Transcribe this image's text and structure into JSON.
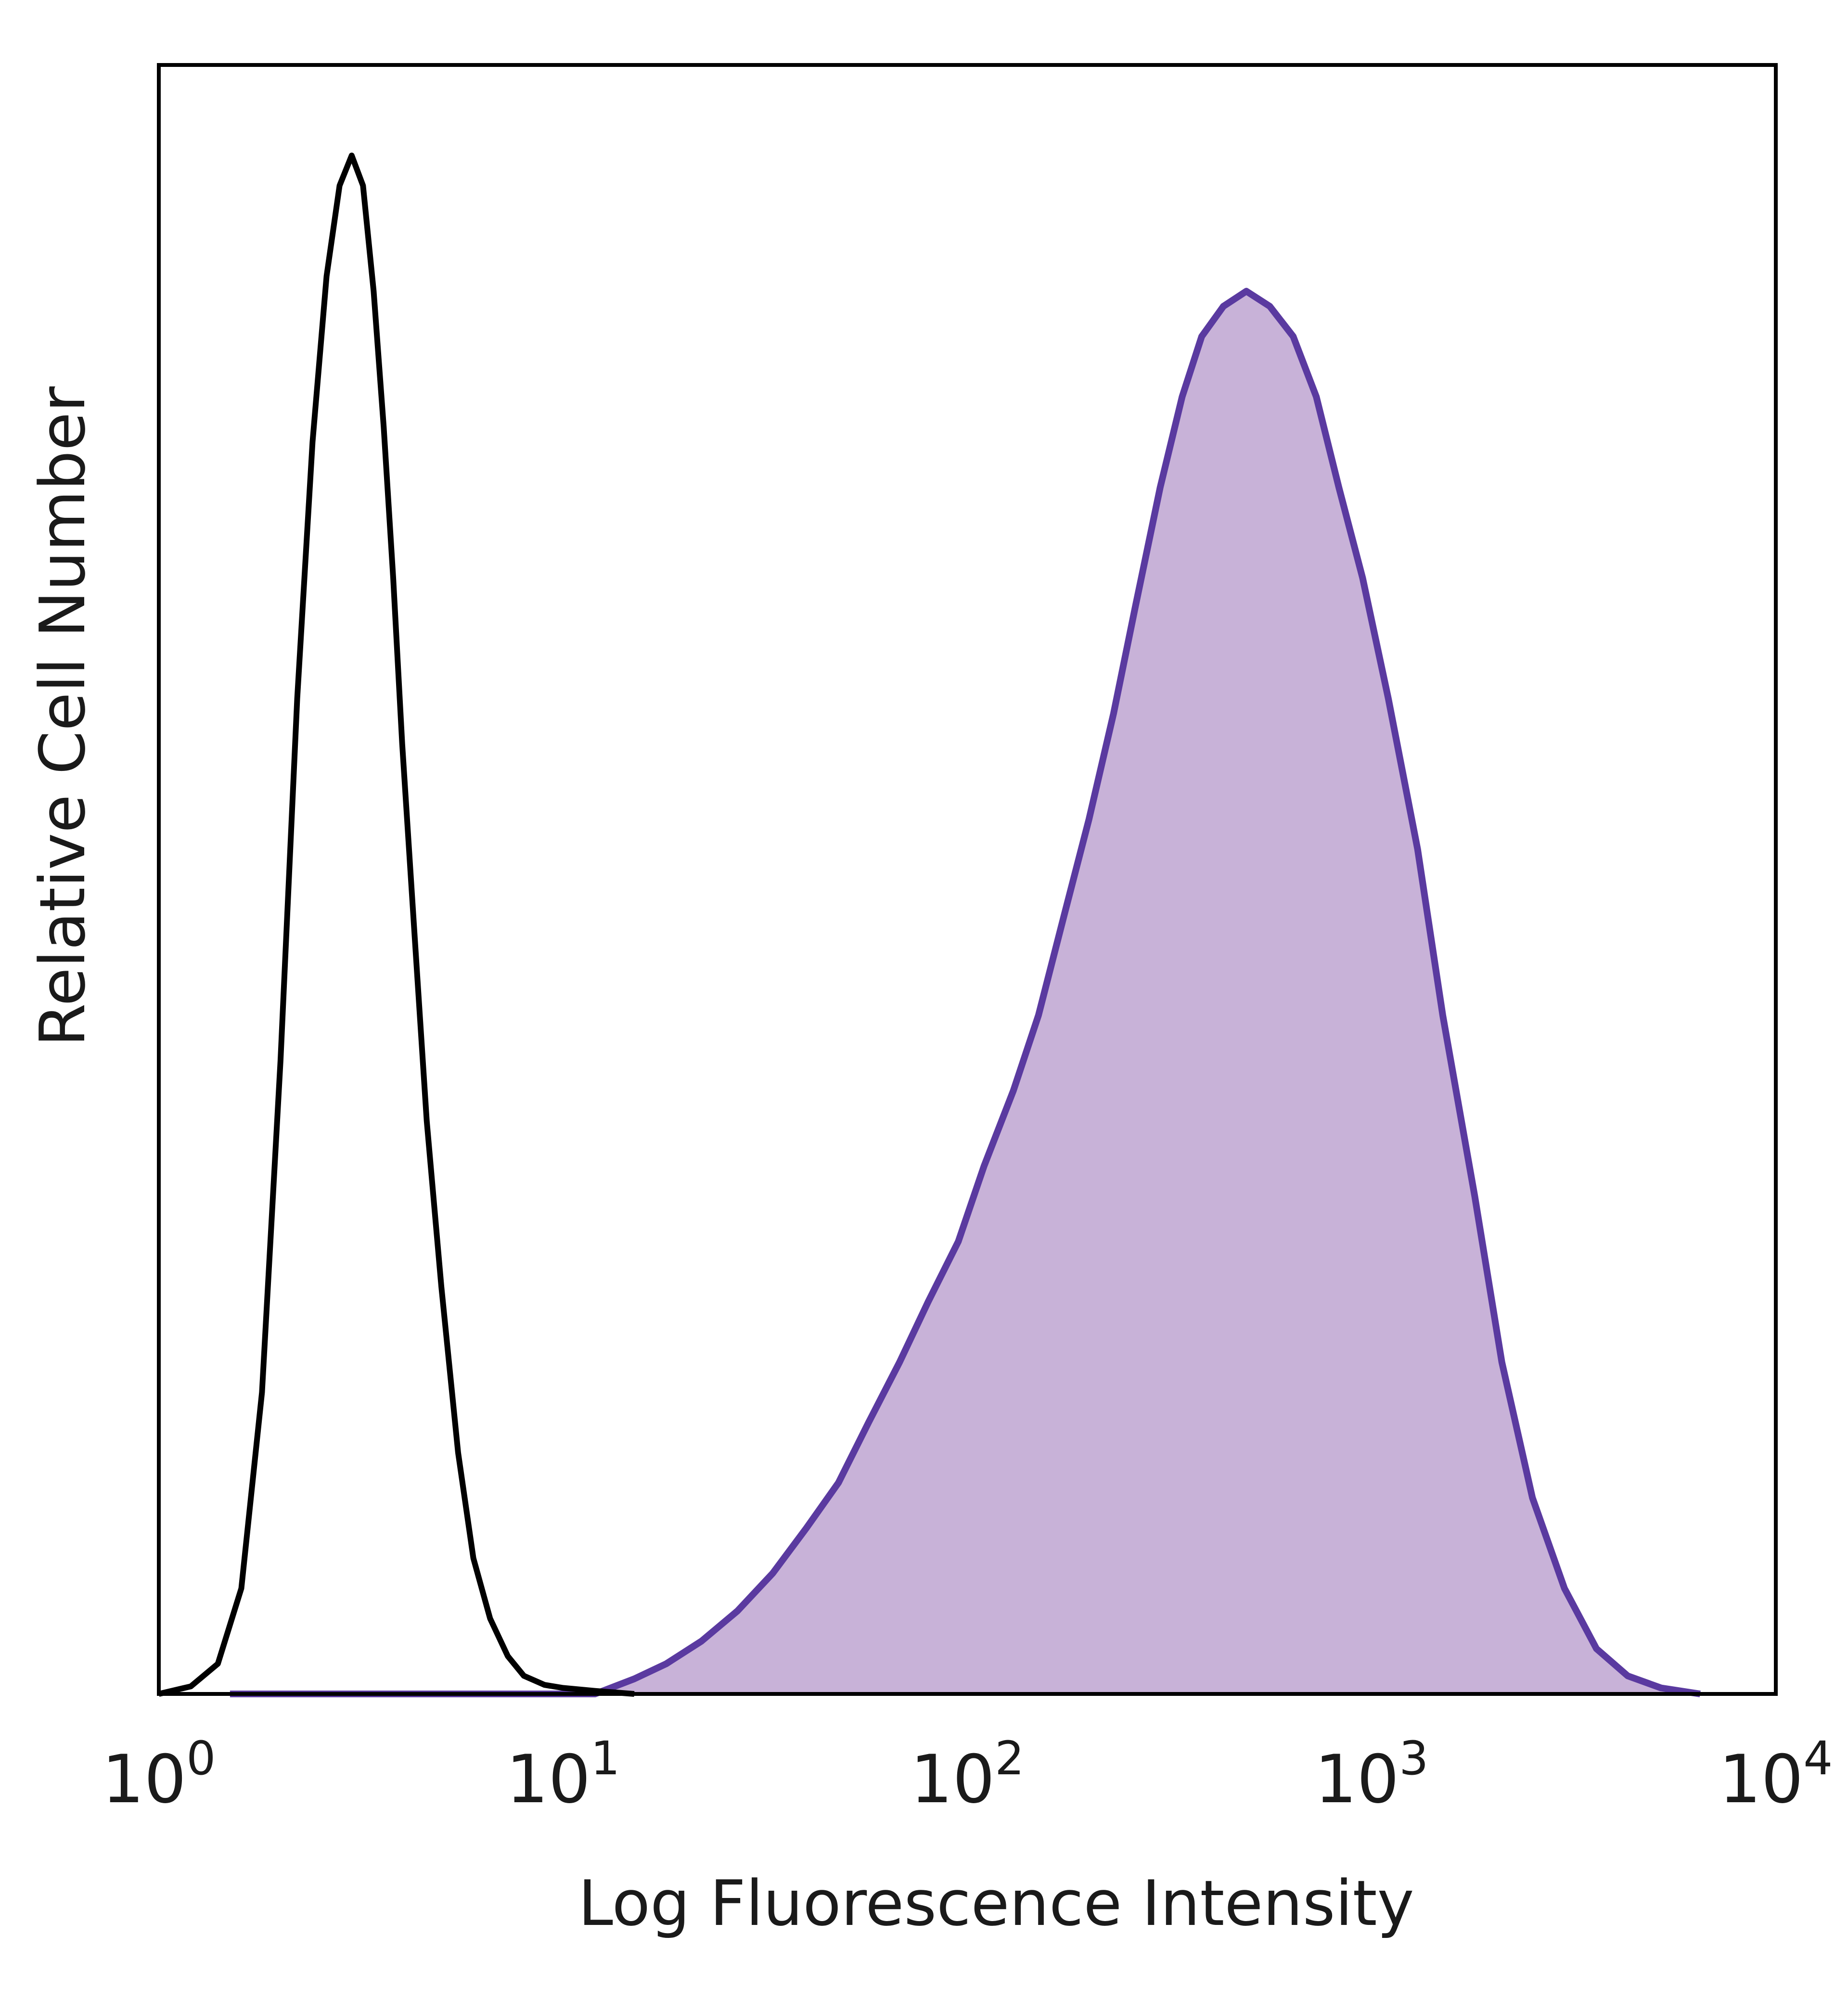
{
  "chart_data": {
    "type": "area",
    "xlabel": "Log Fluorescence Intensity",
    "ylabel": "Relative Cell Number",
    "x_scale": "log",
    "xlim": [
      1,
      10000
    ],
    "ylim": [
      0,
      1.08
    ],
    "x_ticks": [
      {
        "value": 1,
        "base": "10",
        "exp": "0"
      },
      {
        "value": 10,
        "base": "10",
        "exp": "1"
      },
      {
        "value": 100,
        "base": "10",
        "exp": "2"
      },
      {
        "value": 1000,
        "base": "10",
        "exp": "3"
      },
      {
        "value": 10000,
        "base": "10",
        "exp": "4"
      }
    ],
    "grid": false,
    "series": [
      {
        "style": "outline",
        "color": "#000000",
        "x": [
          1.0,
          1.2,
          1.4,
          1.6,
          1.8,
          2.0,
          2.2,
          2.4,
          2.6,
          2.8,
          3.0,
          3.2,
          3.4,
          3.6,
          3.8,
          4.0,
          4.3,
          4.6,
          5.0,
          5.5,
          6.0,
          6.6,
          7.3,
          8.0,
          9.0,
          10.0,
          12.0,
          15.0
        ],
        "y": [
          0.0,
          0.005,
          0.02,
          0.07,
          0.2,
          0.42,
          0.66,
          0.83,
          0.94,
          1.0,
          1.02,
          1.0,
          0.93,
          0.84,
          0.74,
          0.63,
          0.5,
          0.38,
          0.27,
          0.16,
          0.09,
          0.05,
          0.025,
          0.012,
          0.006,
          0.004,
          0.002,
          0.0
        ]
      },
      {
        "style": "filled",
        "color": "#5a3aa0",
        "fill": "#c8b2d8",
        "x": [
          1.5,
          12.0,
          15.0,
          18.0,
          22.0,
          27.0,
          33.0,
          40.0,
          48.0,
          57.0,
          68.0,
          80.0,
          95.0,
          110.0,
          130.0,
          150.0,
          175.0,
          200.0,
          230.0,
          260.0,
          300.0,
          340.0,
          380.0,
          430.0,
          490.0,
          560.0,
          640.0,
          730.0,
          830.0,
          950.0,
          1100.0,
          1300.0,
          1500.0,
          1800.0,
          2100.0,
          2500.0,
          3000.0,
          3600.0,
          4300.0,
          5200.0,
          6500.0
        ],
        "y": [
          0.0,
          0.0,
          0.01,
          0.02,
          0.035,
          0.055,
          0.08,
          0.11,
          0.14,
          0.18,
          0.22,
          0.26,
          0.3,
          0.35,
          0.4,
          0.45,
          0.52,
          0.58,
          0.65,
          0.72,
          0.8,
          0.86,
          0.9,
          0.92,
          0.93,
          0.92,
          0.9,
          0.86,
          0.8,
          0.74,
          0.66,
          0.56,
          0.45,
          0.33,
          0.22,
          0.13,
          0.07,
          0.03,
          0.012,
          0.004,
          0.0
        ]
      }
    ]
  }
}
